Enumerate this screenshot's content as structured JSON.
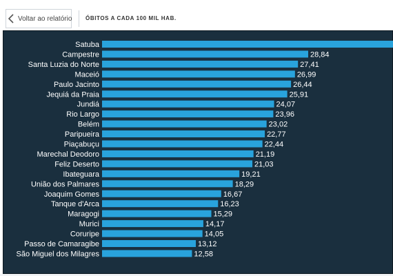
{
  "header": {
    "back_label": "Voltar ao relatório",
    "title": "ÓBITOS A CADA 100 MIL HAB."
  },
  "colors": {
    "panel_bg": "#1a2f3e",
    "bar": "#29a3dc",
    "text": "#ffffff"
  },
  "chart_data": {
    "type": "bar",
    "orientation": "horizontal",
    "categories": [
      "Satuba",
      "Campestre",
      "Santa Luzia do Norte",
      "Maceió",
      "Paulo Jacinto",
      "Jequiá da Praia",
      "Jundiá",
      "Rio Largo",
      "Belém",
      "Paripueira",
      "Piaçabuçu",
      "Marechal Deodoro",
      "Feliz Deserto",
      "Ibateguara",
      "União dos Palmares",
      "Joaquim Gomes",
      "Tanque d'Arca",
      "Maragogi",
      "Murici",
      "Coruripe",
      "Passo de Camaragibe",
      "São Miguel dos Milagres"
    ],
    "values": [
      null,
      28.84,
      27.41,
      26.99,
      26.44,
      25.91,
      24.07,
      23.96,
      23.02,
      22.77,
      22.44,
      21.19,
      21.03,
      19.21,
      18.29,
      16.67,
      16.23,
      15.29,
      14.17,
      14.05,
      13.12,
      12.58
    ],
    "value_labels": [
      "",
      "28,84",
      "27,41",
      "26,99",
      "26,44",
      "25,91",
      "24,07",
      "23,96",
      "23,02",
      "22,77",
      "22,44",
      "21,19",
      "21,03",
      "19,21",
      "18,29",
      "16,67",
      "16,23",
      "15,29",
      "14,17",
      "14,05",
      "13,12",
      "12,58"
    ],
    "first_bar_truncated": true,
    "xlim": [
      0,
      28.84
    ],
    "title": "",
    "xlabel": "",
    "ylabel": "",
    "grid": false,
    "legend": "none"
  }
}
